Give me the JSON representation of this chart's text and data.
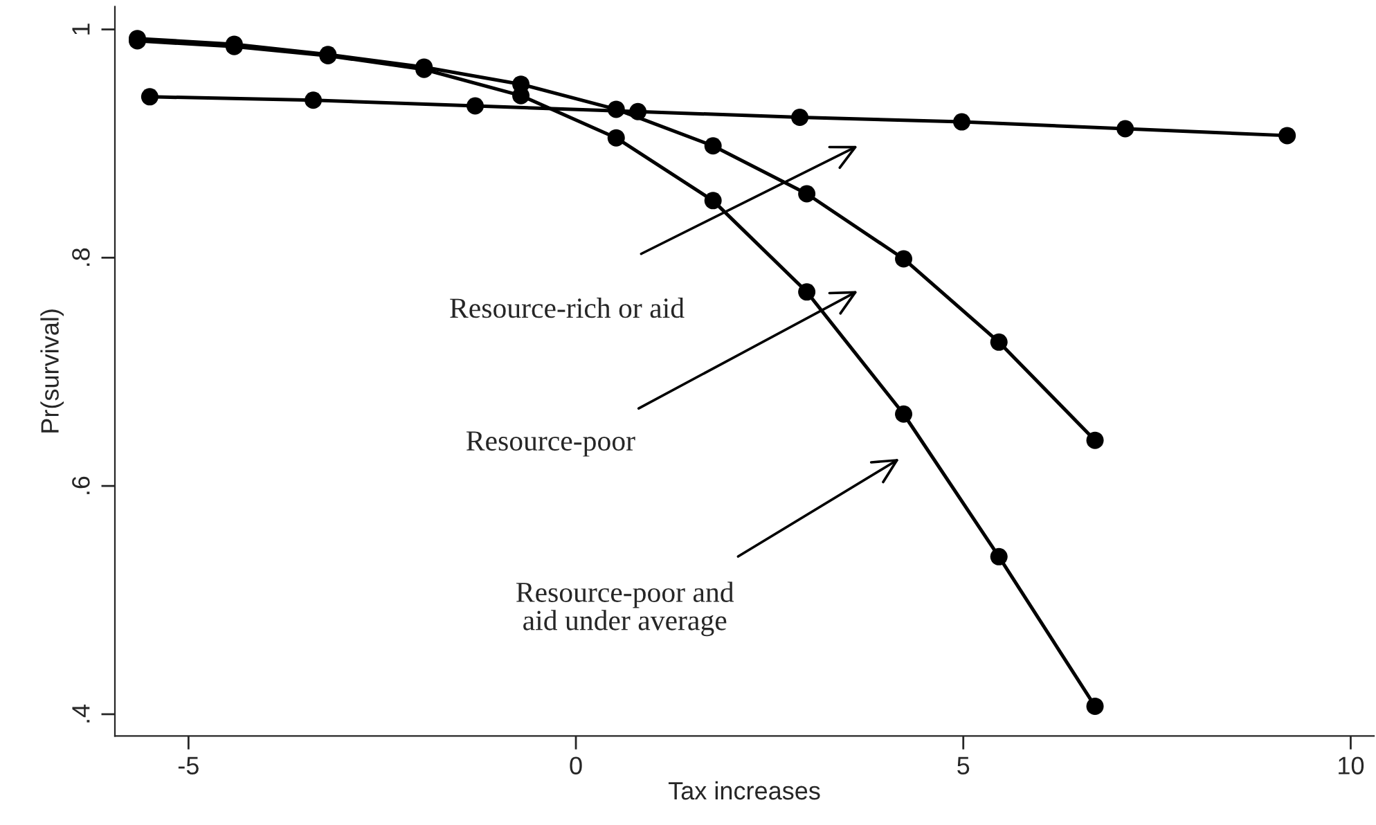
{
  "chart_data": {
    "type": "line",
    "xlabel": "Tax increases",
    "ylabel": "Pr(survival)",
    "xlim": [
      -5.95,
      10.3
    ],
    "xticks": [
      -5,
      0,
      5,
      10
    ],
    "ylim": [
      0.381,
      1.02
    ],
    "yticks": [
      {
        "value": 0.4,
        "label": ".4"
      },
      {
        "value": 0.6,
        "label": ".6"
      },
      {
        "value": 0.8,
        "label": ".8"
      },
      1
    ],
    "grid": false,
    "marker": "circle",
    "line_style": "solid",
    "series": [
      {
        "color": "#000000",
        "x": [
          -5.5,
          -3.39,
          -1.3,
          0.8,
          2.89,
          4.98,
          7.09,
          9.18
        ],
        "values": [
          0.941,
          0.938,
          0.933,
          0.928,
          0.923,
          0.919,
          0.913,
          0.907
        ]
      },
      {
        "color": "#000000",
        "x": [
          -5.66,
          -4.41,
          -3.2,
          -1.96,
          -0.71,
          0.52,
          1.77,
          2.98,
          4.23,
          5.46,
          6.7
        ],
        "values": [
          0.992,
          0.987,
          0.978,
          0.967,
          0.952,
          0.93,
          0.898,
          0.856,
          0.799,
          0.726,
          0.64
        ]
      },
      {
        "color": "#000000",
        "x": [
          -5.66,
          -4.41,
          -3.2,
          -1.96,
          -0.71,
          0.52,
          1.77,
          2.98,
          4.23,
          5.46,
          6.7
        ],
        "values": [
          0.99,
          0.985,
          0.977,
          0.965,
          0.942,
          0.905,
          0.85,
          0.77,
          0.663,
          0.538,
          0.407
        ]
      }
    ],
    "annotations": [
      "Resource-rich or aid",
      "Resource-poor",
      "Resource-poor and\naid under average"
    ]
  }
}
